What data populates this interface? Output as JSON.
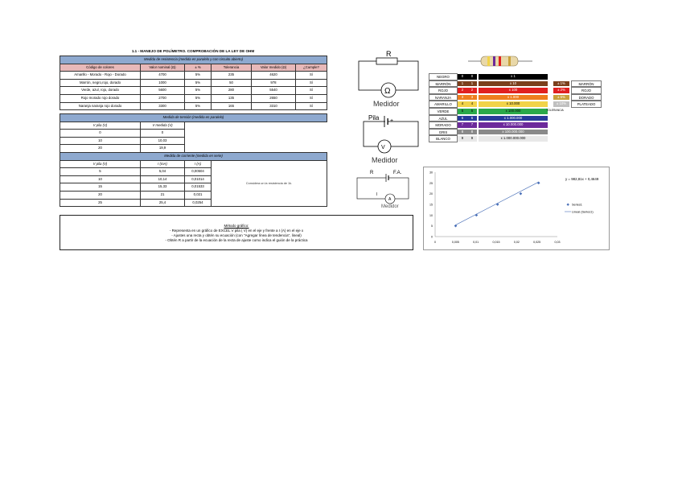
{
  "page_title": "1.1 - MANEJO DE POLÍMETRO. COMPROBACIÓN DE LA LEY DE OHM",
  "resistance": {
    "section": "Medida de resistencia (medida en paralelo y con circuito abierto)",
    "headers": [
      "Código de colores",
      "Valor nominal (Ω)",
      "± %",
      "Tolerancia",
      "Valor medido (Ω)",
      "¿Cumple?"
    ],
    "rows": [
      [
        "Amarillo - Morado - Rojo - Dorado",
        "4700",
        "5%",
        "235",
        "4620",
        "Sí"
      ],
      [
        "Marrón, negro,rojo, dorado",
        "1000",
        "5%",
        "50",
        "978",
        "Sí"
      ],
      [
        "Verde, azul, rojo, dorado",
        "5600",
        "5%",
        "280",
        "5540",
        "Sí"
      ],
      [
        "Rojo morado rojo dorado",
        "2700",
        "5%",
        "135",
        "2650",
        "Sí"
      ],
      [
        "Naranja naranja rojo dorado",
        "3300",
        "5%",
        "165",
        "3310",
        "Sí"
      ]
    ]
  },
  "tension": {
    "section": "Medida de tensión (medida en paralelo)",
    "headers": [
      "V pila (V)",
      "V medida (V)"
    ],
    "rows": [
      [
        "0",
        "0"
      ],
      [
        "10",
        "10,03"
      ],
      [
        "20",
        "19,9"
      ]
    ]
  },
  "current": {
    "section": "Medida de corriente (medida en serie)",
    "headers": [
      "V pila (V)",
      "I (mA)",
      "I (A)"
    ],
    "rows": [
      [
        "5",
        "5,04",
        "0,00504"
      ],
      [
        "10",
        "10,14",
        "0,01014"
      ],
      [
        "15",
        "15,33",
        "0,01533"
      ],
      [
        "20",
        "21",
        "0,021"
      ],
      [
        "25",
        "25,4",
        "0,0254"
      ]
    ],
    "note": "Considera un la resistencia de 1k."
  },
  "method": {
    "title": "Método gráfico:",
    "lines": [
      "- Representa en un gráfico de EXCEL  V pila ( V) en el eje y  frente a I (A) en el eje x",
      "- Ajustes una recta y obtén su ecuación (con \"Agregar línea de tendencia\", lineal)",
      "- Obtén R  a partir de la ecuación de la recta de ajuste como indica el guión de la práctica"
    ]
  },
  "diagrams": {
    "r_label": "R",
    "ohm_symbol": "Ω",
    "meter1": "Medidor",
    "pila": "Pila",
    "plus": "+",
    "v_symbol": "V",
    "meter2": "Medidor",
    "d3_r": "R",
    "d3_fa": "F.A.",
    "d3_meter": "Medidor",
    "d3_i": "I",
    "d3_a": "A"
  },
  "color_code": {
    "rows": [
      {
        "name": "NEGRO",
        "color": "#000000",
        "d1": "0",
        "d2": "0",
        "mult": "x 1"
      },
      {
        "name": "MARRÓN",
        "color": "#7b3f1c",
        "d1": "1",
        "d2": "1",
        "mult": "x 10"
      },
      {
        "name": "ROJO",
        "color": "#e02020",
        "d1": "2",
        "d2": "2",
        "mult": "x 100"
      },
      {
        "name": "NARANJA",
        "color": "#ee7d1e",
        "d1": "3",
        "d2": "3",
        "mult": "x 1.000"
      },
      {
        "name": "AMARILLO",
        "color": "#f1d34a",
        "d1": "4",
        "d2": "4",
        "mult": "x 10.000"
      },
      {
        "name": "VERDE",
        "color": "#2aa84a",
        "d1": "5",
        "d2": "5",
        "mult": "x 100.000"
      },
      {
        "name": "AZUL",
        "color": "#283a9a",
        "d1": "6",
        "d2": "6",
        "mult": "x 1.000.000"
      },
      {
        "name": "MORADO",
        "color": "#6c2a9b",
        "d1": "7",
        "d2": "7",
        "mult": "x 10.000.000"
      },
      {
        "name": "GRIS",
        "color": "#8a8a8a",
        "d1": "8",
        "d2": "8",
        "mult": "x 100.000.000"
      },
      {
        "name": "BLANCO",
        "color": "#e8e8e8",
        "d1": "9",
        "d2": "9",
        "mult": "x 1.000.000.000"
      }
    ],
    "tolerance": [
      {
        "name": "MARRÓN",
        "color": "#7b3f1c",
        "val": "± 1%"
      },
      {
        "name": "ROJO",
        "color": "#e02020",
        "val": "± 2%"
      },
      {
        "name": "DORADO",
        "color": "#c9a13b",
        "val": "± 5%"
      },
      {
        "name": "PLATEADO",
        "color": "#c0c0c0",
        "val": "± 10%"
      }
    ],
    "tolerance_label": "TOLERANCIA"
  },
  "chart_data": {
    "type": "scatter",
    "series": [
      {
        "name": "Series1",
        "x": [
          0.00504,
          0.01014,
          0.01533,
          0.021,
          0.0254
        ],
        "y": [
          5,
          10,
          15,
          20,
          25
        ]
      }
    ],
    "trendline": {
      "name": "Lineal (Series1)",
      "slope": 982.81,
      "intercept": 0.4649
    },
    "equation": "y = 982,81x + 0,4649",
    "xlim": [
      0,
      0.03
    ],
    "ylim": [
      0,
      30
    ],
    "x_ticks": [
      "0",
      "0,005",
      "0,01",
      "0,015",
      "0,02",
      "0,025",
      "0,03"
    ],
    "y_ticks": [
      "0",
      "5",
      "10",
      "15",
      "20",
      "25",
      "30"
    ],
    "legend": [
      "Series1",
      "Lineal (Series1)"
    ],
    "legend_position": "right",
    "colors": {
      "points": "#4a70b8",
      "line": "#4a70b8"
    }
  }
}
